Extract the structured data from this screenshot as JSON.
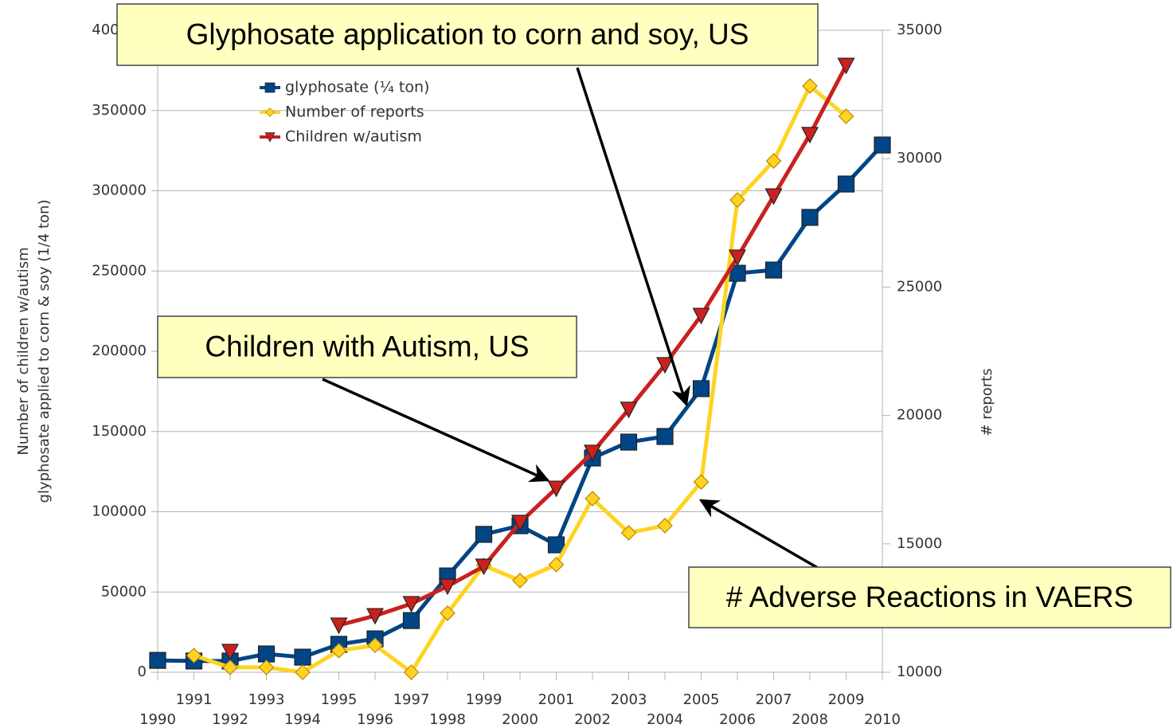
{
  "chart_data": {
    "type": "line",
    "ylabel": [
      "Number of children w/autism",
      "glyphosate applied to corn & soy (1/4 ton)"
    ],
    "y2label": "# reports",
    "x": [
      1990,
      1991,
      1992,
      1993,
      1994,
      1995,
      1996,
      1997,
      1998,
      1999,
      2000,
      2001,
      2002,
      2003,
      2004,
      2005,
      2006,
      2007,
      2008,
      2009,
      2010
    ],
    "xlim": [
      1990,
      2010
    ],
    "xticks": [
      1990,
      1991,
      1992,
      1993,
      1994,
      1995,
      1996,
      1997,
      1998,
      1999,
      2000,
      2001,
      2002,
      2003,
      2004,
      2005,
      2006,
      2007,
      2008,
      2009,
      2010
    ],
    "ylim": [
      0,
      400000
    ],
    "yticks": [
      0,
      50000,
      100000,
      150000,
      200000,
      250000,
      300000,
      350000,
      400000
    ],
    "y2lim": [
      10000,
      35000
    ],
    "y2ticks": [
      10000,
      15000,
      20000,
      25000,
      30000,
      35000
    ],
    "grid": true,
    "legend": "top-left",
    "series": [
      {
        "name": "glyphosate (¼ ton)",
        "color": "#004586",
        "marker": "square",
        "values": [
          7400,
          7000,
          7000,
          11400,
          9400,
          17400,
          20800,
          32200,
          60000,
          85900,
          91300,
          79400,
          133500,
          143400,
          146900,
          176700,
          248600,
          250600,
          283400,
          304200,
          328500
        ]
      },
      {
        "name": "Number of reports",
        "color": "#ffd320",
        "marker": "diamond",
        "axis": "y2",
        "values": [
          null,
          10650,
          10190,
          10190,
          10000,
          10840,
          11050,
          10000,
          12300,
          14160,
          13570,
          14190,
          16760,
          15430,
          15710,
          17410,
          28390,
          29910,
          32830,
          31650,
          null
        ]
      },
      {
        "name": "Children w/autism",
        "color": "#c9211e",
        "marker": "triangle-down",
        "values": [
          null,
          null,
          12900,
          null,
          null,
          29300,
          35200,
          42700,
          53600,
          66000,
          93300,
          114600,
          137000,
          163800,
          191600,
          222300,
          258600,
          296700,
          335000,
          378100,
          null
        ]
      }
    ],
    "annotations": [
      {
        "text": "Glyphosate application to corn and soy, US"
      },
      {
        "text": "Children with Autism, US"
      },
      {
        "text": "# Adverse Reactions in VAERS"
      }
    ]
  }
}
